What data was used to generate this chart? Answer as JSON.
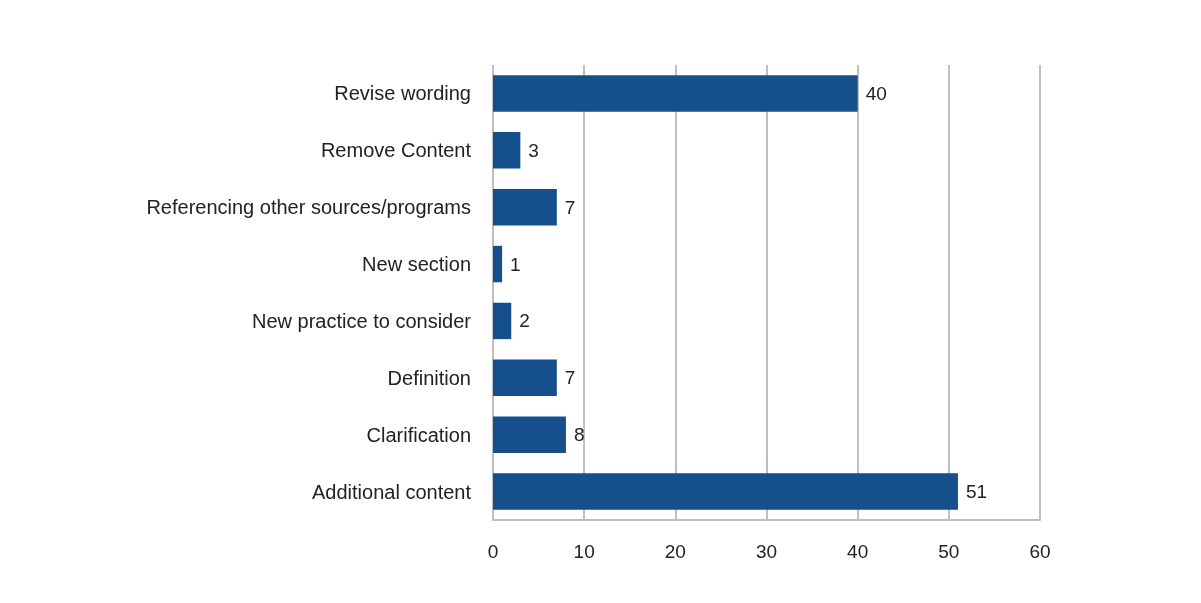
{
  "chart_data": {
    "type": "bar",
    "orientation": "horizontal",
    "categories": [
      "Revise wording",
      "Remove Content",
      "Referencing other sources/programs",
      "New section",
      "New practice to consider",
      "Definition",
      "Clarification",
      "Additional content"
    ],
    "values": [
      40,
      3,
      7,
      1,
      2,
      7,
      8,
      51
    ],
    "color": "#154f8c",
    "data_labels": true,
    "xlim": [
      0,
      60
    ],
    "xticks": [
      0,
      10,
      20,
      30,
      40,
      50,
      60
    ],
    "grid": "x"
  }
}
